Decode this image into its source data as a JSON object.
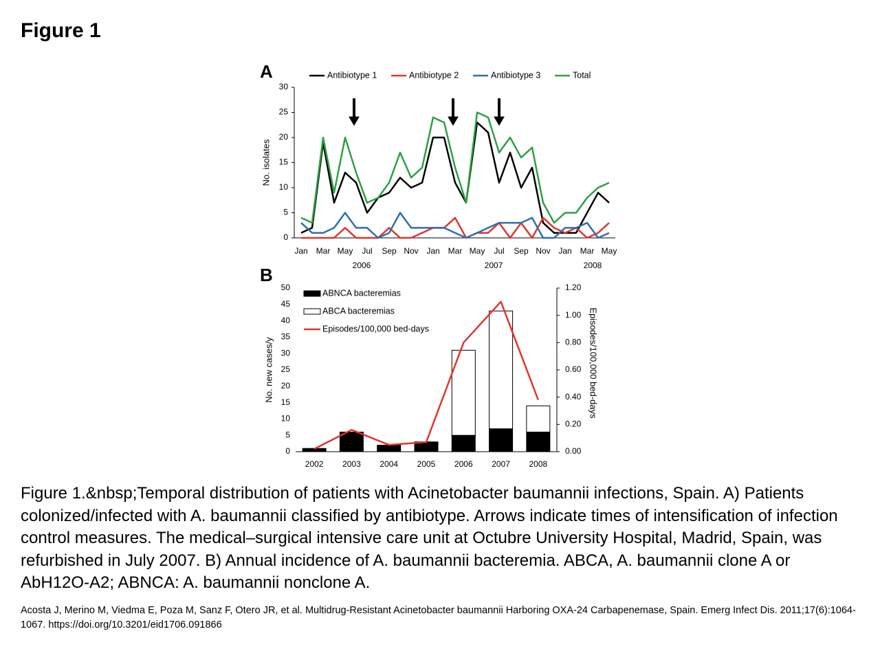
{
  "title": "Figure 1",
  "chart_data": [
    {
      "type": "line",
      "panel_label": "A",
      "ylabel": "No. isolates",
      "categories": [
        "Jan",
        null,
        "Mar",
        null,
        "May",
        null,
        "Jul",
        null,
        "Sep",
        null,
        "Nov",
        null,
        "Jan",
        null,
        "Mar",
        null,
        "May",
        null,
        "Jul",
        null,
        "Sep",
        null,
        "Nov",
        null,
        "Jan",
        null,
        "Mar",
        null,
        "May"
      ],
      "x_groups": [
        "2006",
        "2007",
        "2008"
      ],
      "ylim": [
        0,
        30
      ],
      "yticks": [
        0,
        5,
        10,
        15,
        20,
        25,
        30
      ],
      "series": [
        {
          "name": "Antibiotype 1",
          "color": "#000000",
          "values": [
            1,
            2,
            19,
            7,
            13,
            11,
            5,
            8,
            9,
            12,
            10,
            11,
            20,
            20,
            11,
            7,
            23,
            21,
            11,
            17,
            10,
            14,
            3,
            1,
            1,
            1,
            5,
            9,
            7
          ]
        },
        {
          "name": "Antibiotype 2",
          "color": "#e0352b",
          "values": [
            0,
            0,
            0,
            0,
            2,
            0,
            0,
            0,
            2,
            0,
            0,
            1,
            2,
            2,
            4,
            0,
            1,
            1,
            3,
            0,
            3,
            0,
            4,
            2,
            1,
            2,
            0,
            1,
            3
          ]
        },
        {
          "name": "Antibiotype 3",
          "color": "#2a6fb0",
          "values": [
            3,
            1,
            1,
            2,
            5,
            2,
            2,
            0,
            1,
            5,
            2,
            2,
            2,
            2,
            1,
            0,
            1,
            2,
            3,
            3,
            3,
            4,
            0,
            0,
            2,
            2,
            3,
            0,
            1
          ]
        },
        {
          "name": "Total",
          "color": "#2ea043",
          "values": [
            4,
            3,
            20,
            9,
            20,
            13,
            7,
            8,
            11,
            17,
            12,
            14,
            24,
            23,
            14,
            7,
            25,
            24,
            17,
            20,
            16,
            18,
            7,
            3,
            5,
            5,
            8,
            10,
            11
          ]
        }
      ]
    },
    {
      "type": "bar",
      "panel_label": "B",
      "ylabel": "No.  new cases/y",
      "y2label": "Episodes/100,000 bed-days",
      "categories": [
        "2002",
        "2003",
        "2004",
        "2005",
        "2006",
        "2007",
        "2008"
      ],
      "ylim": [
        0,
        50
      ],
      "yticks": [
        0,
        5,
        10,
        15,
        20,
        25,
        30,
        35,
        40,
        45,
        50
      ],
      "y2lim": [
        0,
        1.2
      ],
      "y2ticks": [
        {
          "value": 0,
          "label": "0.00"
        },
        {
          "value": 0.2,
          "label": "0.20"
        },
        {
          "value": 0.4,
          "label": "0.40"
        },
        {
          "value": 0.6,
          "label": "0.60"
        },
        {
          "value": 0.8,
          "label": "0.80"
        },
        {
          "value": 1.0,
          "label": "1.00"
        },
        {
          "value": 1.2,
          "label": "1.20"
        }
      ],
      "stacked": true,
      "series": [
        {
          "name": "ABNCA bacteremias",
          "color": "#000000",
          "values": [
            1,
            6,
            2,
            3,
            5,
            7,
            6
          ]
        },
        {
          "name": "ABCA bacteremias",
          "color": "#ffffff",
          "values": [
            0,
            0,
            0,
            0,
            26,
            36,
            8
          ]
        },
        {
          "name": "Episodes/100,000 bed-days",
          "color": "#e0352b",
          "type": "line",
          "axis": "y2",
          "values": [
            0.02,
            0.16,
            0.05,
            0.07,
            0.8,
            1.1,
            0.38
          ]
        }
      ]
    }
  ],
  "caption": "Figure 1.&nbsp;Temporal distribution of patients with Acinetobacter baumannii infections, Spain. A) Patients colonized/infected with A. baumannii classified by antibiotype. Arrows indicate times of intensification of infection control measures. The medical–surgical intensive care unit at Octubre University Hospital, Madrid, Spain, was refurbished in July 2007. B) Annual incidence of A. baumannii bacteremia. ABCA, A. baumannii clone A or AbH12O-A2; ABNCA: A. baumannii nonclone A.",
  "citation": "Acosta J, Merino M, Viedma E, Poza M, Sanz F, Otero JR, et al. Multidrug-Resistant Acinetobacter baumannii Harboring OXA-24 Carbapenemase, Spain. Emerg Infect Dis. 2011;17(6):1064-1067. https://doi.org/10.3201/eid1706.091866"
}
